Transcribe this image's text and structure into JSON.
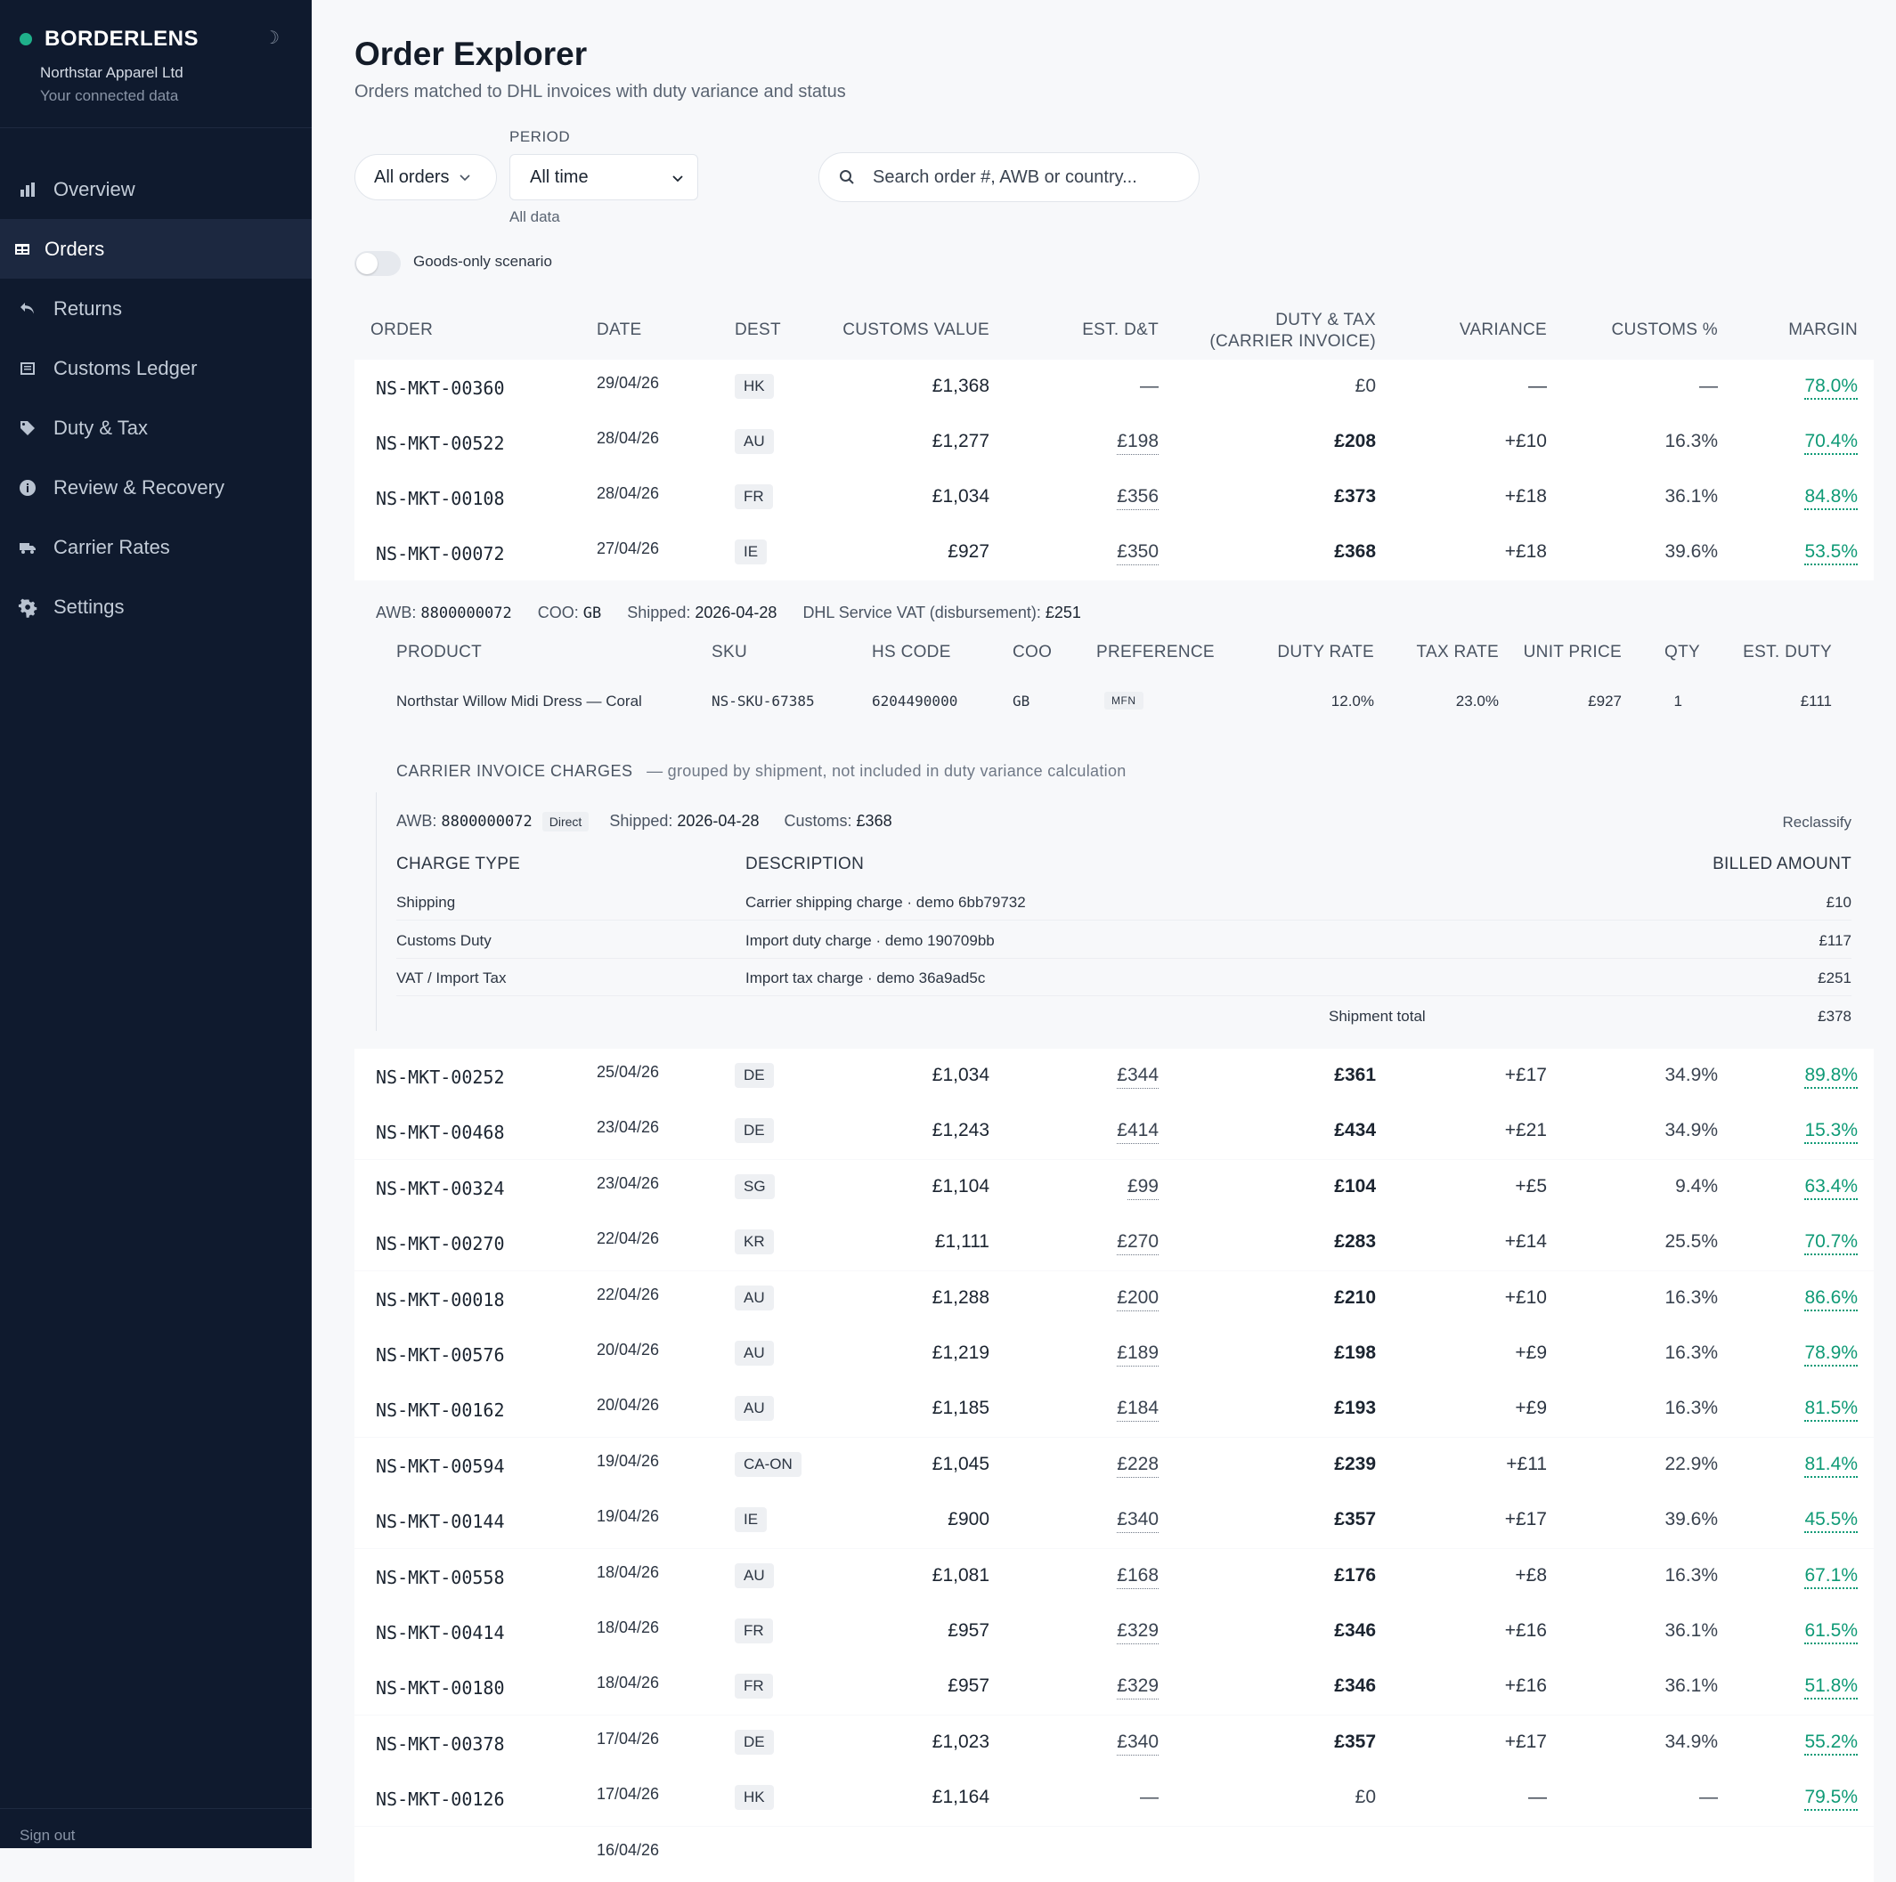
{
  "brand": {
    "name": "BORDERLENS",
    "company": "Northstar Apparel Ltd",
    "subtitle": "Your connected data",
    "theme_icon": "☽"
  },
  "nav": [
    {
      "label": "Overview",
      "icon": "bar-chart-icon",
      "active": false
    },
    {
      "label": "Orders",
      "icon": "table-icon",
      "active": true
    },
    {
      "label": "Returns",
      "icon": "return-arrow-icon",
      "active": false
    },
    {
      "label": "Customs Ledger",
      "icon": "ledger-icon",
      "active": false
    },
    {
      "label": "Duty & Tax",
      "icon": "tag-icon",
      "active": false
    },
    {
      "label": "Review & Recovery",
      "icon": "info-icon",
      "active": false
    },
    {
      "label": "Carrier Rates",
      "icon": "truck-icon",
      "active": false
    },
    {
      "label": "Settings",
      "icon": "gear-icon",
      "active": false
    }
  ],
  "signout": "Sign out",
  "page": {
    "title": "Order Explorer",
    "subtitle": "Orders matched to DHL invoices with duty variance and status"
  },
  "filters": {
    "orders_filter": "All orders",
    "period_label": "PERIOD",
    "period_value": "All time",
    "period_hint": "All data",
    "search_placeholder": "Search order #, AWB or country...",
    "toggle_label": "Goods-only scenario",
    "toggle_on": false
  },
  "table": {
    "headers": {
      "order": "ORDER",
      "date": "DATE",
      "dest": "DEST",
      "customs_value": "CUSTOMS VALUE",
      "est_dt": "EST. D&T",
      "duty_tax_1": "DUTY & TAX",
      "duty_tax_2": "(CARRIER INVOICE)",
      "variance": "VARIANCE",
      "customs_pct": "CUSTOMS %",
      "margin": "MARGIN"
    },
    "rows_top": [
      {
        "order": "NS-MKT-00360",
        "date": "29/04/26",
        "dest": "HK",
        "cv": "£1,368",
        "est": "—",
        "dt": "£0",
        "var": "—",
        "cp": "—",
        "mg": "78.0%"
      },
      {
        "order": "NS-MKT-00522",
        "date": "28/04/26",
        "dest": "AU",
        "cv": "£1,277",
        "est": "£198",
        "dt": "£208",
        "var": "+£10",
        "cp": "16.3%",
        "mg": "70.4%"
      },
      {
        "order": "NS-MKT-00108",
        "date": "28/04/26",
        "dest": "FR",
        "cv": "£1,034",
        "est": "£356",
        "dt": "£373",
        "var": "+£18",
        "cp": "36.1%",
        "mg": "84.8%"
      },
      {
        "order": "NS-MKT-00072",
        "date": "27/04/26",
        "dest": "IE",
        "cv": "£927",
        "est": "£350",
        "dt": "£368",
        "var": "+£18",
        "cp": "39.6%",
        "mg": "53.5%"
      }
    ],
    "rows_bottom": [
      {
        "order": "NS-MKT-00252",
        "date": "25/04/26",
        "dest": "DE",
        "cv": "£1,034",
        "est": "£344",
        "dt": "£361",
        "var": "+£17",
        "cp": "34.9%",
        "mg": "89.8%"
      },
      {
        "order": "NS-MKT-00468",
        "date": "23/04/26",
        "dest": "DE",
        "cv": "£1,243",
        "est": "£414",
        "dt": "£434",
        "var": "+£21",
        "cp": "34.9%",
        "mg": "15.3%"
      },
      {
        "order": "NS-MKT-00324",
        "date": "23/04/26",
        "dest": "SG",
        "cv": "£1,104",
        "est": "£99",
        "dt": "£104",
        "var": "+£5",
        "cp": "9.4%",
        "mg": "63.4%"
      },
      {
        "order": "NS-MKT-00270",
        "date": "22/04/26",
        "dest": "KR",
        "cv": "£1,111",
        "est": "£270",
        "dt": "£283",
        "var": "+£14",
        "cp": "25.5%",
        "mg": "70.7%"
      },
      {
        "order": "NS-MKT-00018",
        "date": "22/04/26",
        "dest": "AU",
        "cv": "£1,288",
        "est": "£200",
        "dt": "£210",
        "var": "+£10",
        "cp": "16.3%",
        "mg": "86.6%"
      },
      {
        "order": "NS-MKT-00576",
        "date": "20/04/26",
        "dest": "AU",
        "cv": "£1,219",
        "est": "£189",
        "dt": "£198",
        "var": "+£9",
        "cp": "16.3%",
        "mg": "78.9%"
      },
      {
        "order": "NS-MKT-00162",
        "date": "20/04/26",
        "dest": "AU",
        "cv": "£1,185",
        "est": "£184",
        "dt": "£193",
        "var": "+£9",
        "cp": "16.3%",
        "mg": "81.5%"
      },
      {
        "order": "NS-MKT-00594",
        "date": "19/04/26",
        "dest": "CA-ON",
        "cv": "£1,045",
        "est": "£228",
        "dt": "£239",
        "var": "+£11",
        "cp": "22.9%",
        "mg": "81.4%"
      },
      {
        "order": "NS-MKT-00144",
        "date": "19/04/26",
        "dest": "IE",
        "cv": "£900",
        "est": "£340",
        "dt": "£357",
        "var": "+£17",
        "cp": "39.6%",
        "mg": "45.5%"
      },
      {
        "order": "NS-MKT-00558",
        "date": "18/04/26",
        "dest": "AU",
        "cv": "£1,081",
        "est": "£168",
        "dt": "£176",
        "var": "+£8",
        "cp": "16.3%",
        "mg": "67.1%"
      },
      {
        "order": "NS-MKT-00414",
        "date": "18/04/26",
        "dest": "FR",
        "cv": "£957",
        "est": "£329",
        "dt": "£346",
        "var": "+£16",
        "cp": "36.1%",
        "mg": "61.5%"
      },
      {
        "order": "NS-MKT-00180",
        "date": "18/04/26",
        "dest": "FR",
        "cv": "£957",
        "est": "£329",
        "dt": "£346",
        "var": "+£16",
        "cp": "36.1%",
        "mg": "51.8%"
      },
      {
        "order": "NS-MKT-00378",
        "date": "17/04/26",
        "dest": "DE",
        "cv": "£1,023",
        "est": "£340",
        "dt": "£357",
        "var": "+£17",
        "cp": "34.9%",
        "mg": "55.2%"
      },
      {
        "order": "NS-MKT-00126",
        "date": "17/04/26",
        "dest": "HK",
        "cv": "£1,164",
        "est": "—",
        "dt": "£0",
        "var": "—",
        "cp": "—",
        "mg": "79.5%"
      }
    ]
  },
  "detail": {
    "awb_label": "AWB:",
    "awb": "8800000072",
    "coo_label": "COO:",
    "coo": "GB",
    "shipped_label": "Shipped:",
    "shipped": "2026-04-28",
    "vat_label": "DHL Service VAT (disbursement):",
    "vat": "£251",
    "product_headers": {
      "product": "PRODUCT",
      "sku": "SKU",
      "hs": "HS CODE",
      "coo": "COO",
      "pref": "PREFERENCE",
      "duty_rate": "DUTY RATE",
      "tax_rate": "TAX RATE",
      "unit_price": "UNIT PRICE",
      "qty": "QTY",
      "est_duty": "EST. DUTY"
    },
    "product": {
      "name": "Northstar Willow Midi Dress — Coral",
      "sku": "NS-SKU-67385",
      "hs": "6204490000",
      "coo": "GB",
      "pref": "MFN",
      "duty_rate": "12.0%",
      "tax_rate": "23.0%",
      "unit_price": "£927",
      "qty": "1",
      "est_duty": "£111"
    },
    "carrier_title": "CARRIER INVOICE CHARGES",
    "carrier_note": "— grouped by shipment, not included in duty variance calculation",
    "shipment": {
      "awb_label": "AWB:",
      "awb": "8800000072",
      "badge": "Direct",
      "shipped_label": "Shipped:",
      "shipped": "2026-04-28",
      "customs_label": "Customs:",
      "customs": "£368",
      "reclassify": "Reclassify"
    },
    "charge_headers": {
      "type": "CHARGE TYPE",
      "desc": "DESCRIPTION",
      "amount": "BILLED AMOUNT"
    },
    "charges": [
      {
        "type": "Shipping",
        "desc": "Carrier shipping charge · demo 6bb79732",
        "amount": "£10"
      },
      {
        "type": "Customs Duty",
        "desc": "Import duty charge · demo 190709bb",
        "amount": "£117"
      },
      {
        "type": "VAT / Import Tax",
        "desc": "Import tax charge · demo 36a9ad5c",
        "amount": "£251"
      }
    ],
    "total_label": "Shipment total",
    "total": "£378"
  },
  "partial_row": {
    "date": "16/04/26"
  }
}
